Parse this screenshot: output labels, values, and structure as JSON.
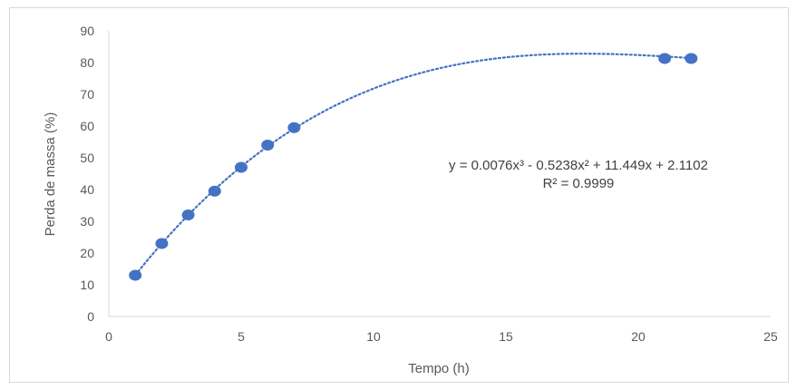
{
  "chart_data": {
    "type": "scatter",
    "title": "",
    "xlabel": "Tempo (h)",
    "ylabel": "Perda de massa (%)",
    "xlim": [
      0,
      25
    ],
    "ylim": [
      0,
      90
    ],
    "xticks": [
      0,
      5,
      10,
      15,
      20,
      25
    ],
    "yticks": [
      0,
      10,
      20,
      30,
      40,
      50,
      60,
      70,
      80,
      90
    ],
    "grid": false,
    "legend": "none",
    "series": [
      {
        "x": [
          1,
          2,
          3,
          4,
          5,
          6,
          7,
          21,
          22
        ],
        "y": [
          13,
          23,
          32,
          39.5,
          47,
          54,
          59.5,
          81.3,
          81.3
        ],
        "color": "#4472c4"
      }
    ],
    "trendline": {
      "type": "polynomial",
      "order": 3,
      "coefficients": [
        0.0076,
        -0.5238,
        11.449,
        2.1102
      ],
      "x_range": [
        1,
        22
      ],
      "style": "dotted",
      "color": "#4472c4",
      "equation_label": "y = 0.0076x³ - 0.5238x² + 11.449x + 2.1102",
      "r2_label": "R² = 0.9999"
    },
    "colors": {
      "axis": "#d9d9d9",
      "text": "#595959"
    }
  }
}
